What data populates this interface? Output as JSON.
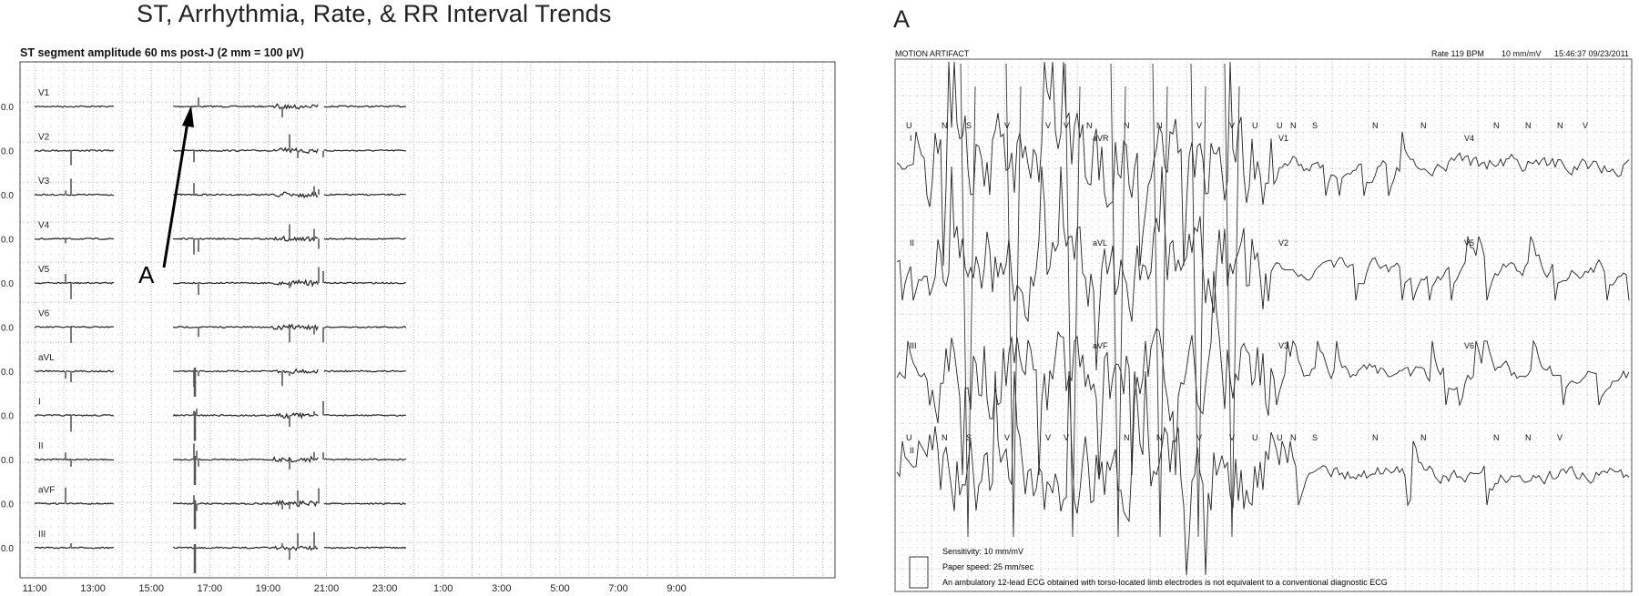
{
  "title": "ST, Arrhythmia, Rate, & RR Interval Trends",
  "chart_data": [
    {
      "type": "line",
      "subtitle": "ST segment amplitude 60 ms post-J (2 mm = 100 µV)",
      "x_ticks": [
        "11:00",
        "13:00",
        "15:00",
        "17:00",
        "19:00",
        "21:00",
        "23:00",
        "1:00",
        "3:00",
        "5:00",
        "7:00",
        "9:00"
      ],
      "y_zero_label": "0.0",
      "leads": [
        "V1",
        "V2",
        "V3",
        "V4",
        "V5",
        "V6",
        "aVL",
        "I",
        "II",
        "aVF",
        "III"
      ],
      "annotation": "A",
      "recording_windows": [
        "11:00-13:45",
        "15:45-20:45",
        "20:55-23:45"
      ],
      "grid": true
    },
    {
      "type": "line",
      "panel_label": "A",
      "header": {
        "left": "MOTION ARTIFACT",
        "rate": "Rate 119 BPM",
        "gain": "10 mm/mV",
        "timestamp": "15:46:37  09/23/2011"
      },
      "lead_labels": {
        "col1": [
          "I",
          "II",
          "III"
        ],
        "col2": [
          "aVR",
          "aVL",
          "aVF"
        ],
        "col3": [
          "V1",
          "V2",
          "V3"
        ],
        "col4": [
          "V4",
          "V5",
          "V6"
        ],
        "rhythm": "II"
      },
      "beat_labels_top": [
        "U",
        "N",
        "S",
        "V",
        "V",
        "V",
        "N",
        "N",
        "N",
        "V",
        "V",
        "U",
        "U",
        "N",
        "S",
        "N",
        "N",
        "N",
        "N",
        "N",
        "V"
      ],
      "beat_labels_bottom": [
        "U",
        "N",
        "S",
        "V",
        "V",
        "V",
        "N",
        "N",
        "V",
        "V",
        "U",
        "U",
        "N",
        "S",
        "N",
        "N",
        "N",
        "N",
        "V"
      ],
      "footer": {
        "sensitivity": "Sensitivity: 10 mm/mV",
        "speed": "Paper speed: 25 mm/sec",
        "disclaimer": "An ambulatory 12-lead ECG obtained with torso-located limb electrodes is not equivalent to a conventional diagnostic ECG"
      },
      "grid": true
    }
  ]
}
